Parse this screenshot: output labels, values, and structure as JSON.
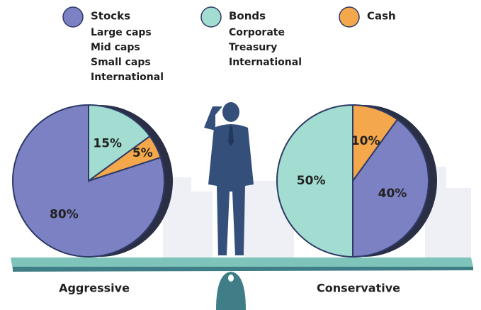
{
  "legend": [
    {
      "name": "Stocks",
      "color": "#7c81c4",
      "items": [
        "Large caps",
        "Mid caps",
        "Small caps",
        "International"
      ]
    },
    {
      "name": "Bonds",
      "color": "#a3ddd2",
      "items": [
        "Corporate",
        "Treasury",
        "International"
      ]
    },
    {
      "name": "Cash",
      "color": "#f4a84b",
      "items": []
    }
  ],
  "chart_data": [
    {
      "type": "pie",
      "title": "Aggressive",
      "values": [
        80,
        15,
        5
      ],
      "value_labels": [
        "80%",
        "15%",
        "5%"
      ]
    },
    {
      "type": "pie",
      "title": "Conservative",
      "values": [
        40,
        50,
        10
      ],
      "value_labels": [
        "40%",
        "50%",
        "10%"
      ]
    }
  ]
}
